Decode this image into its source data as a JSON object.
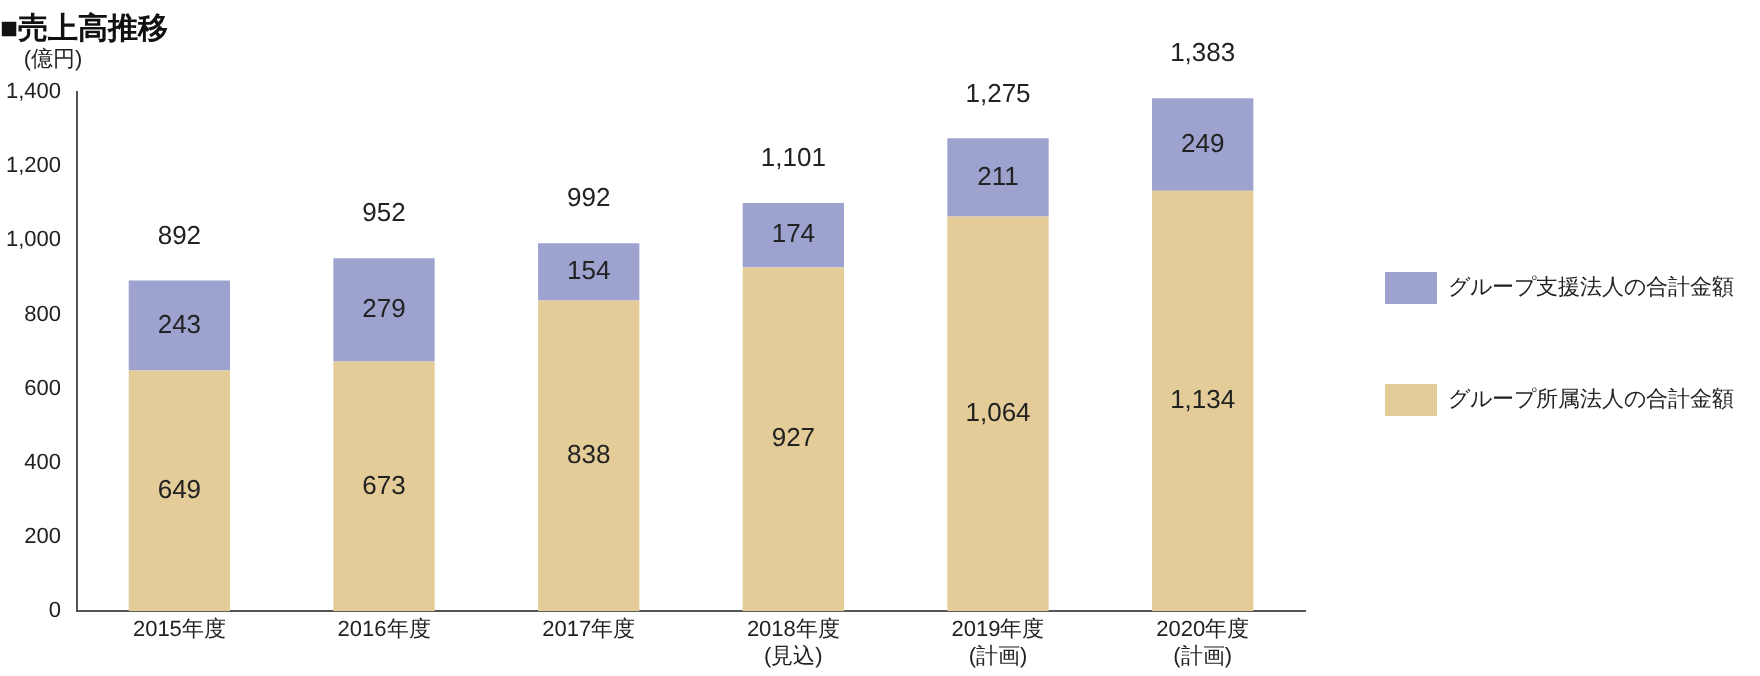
{
  "chart_data": {
    "type": "bar",
    "title": "■売上高推移",
    "ylabel": "(億円)",
    "stacked": true,
    "categories": [
      "2015年度",
      "2016年度",
      "2017年度",
      "2018年度\n(見込)",
      "2019年度\n(計画)",
      "2020年度\n(計画)"
    ],
    "series": [
      {
        "name": "グループ所属法人の合計金額",
        "color": "#e3cc97",
        "values": [
          649,
          673,
          838,
          927,
          1064,
          1134
        ],
        "value_labels": [
          "649",
          "673",
          "838",
          "927",
          "1,064",
          "1,134"
        ]
      },
      {
        "name": "グループ支援法人の合計金額",
        "color": "#9da2cf",
        "values": [
          243,
          279,
          154,
          174,
          211,
          249
        ],
        "value_labels": [
          "243",
          "279",
          "154",
          "174",
          "211",
          "249"
        ]
      }
    ],
    "totals": [
      "892",
      "952",
      "992",
      "1,101",
      "1,275",
      "1,383"
    ],
    "ylim": [
      0,
      1400
    ],
    "yticks": [
      0,
      200,
      400,
      600,
      800,
      {
        "value": 1000,
        "label": "1,000"
      },
      {
        "value": 1200,
        "label": "1,200"
      },
      {
        "value": 1400,
        "label": "1,400"
      }
    ],
    "grid": false,
    "legend": "right"
  }
}
